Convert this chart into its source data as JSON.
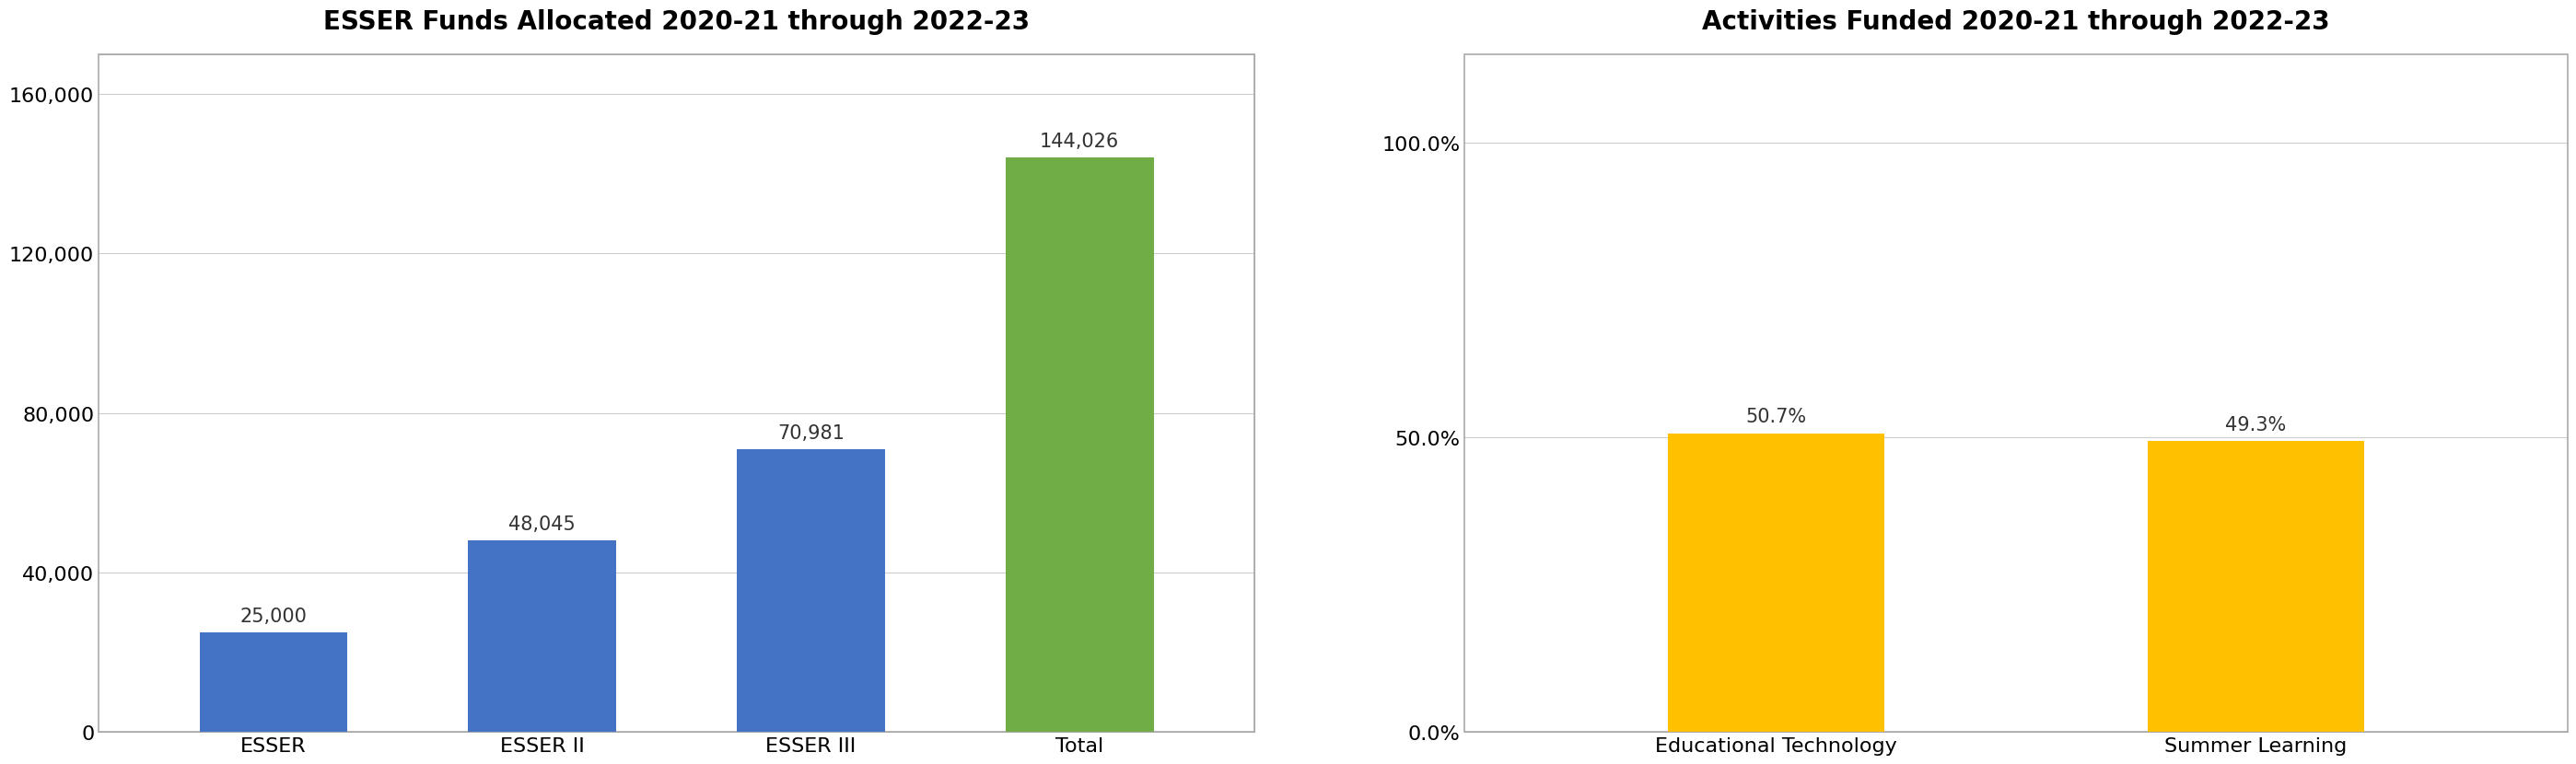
{
  "chart1": {
    "title": "ESSER Funds Allocated 2020-21 through 2022-23",
    "categories": [
      "ESSER",
      "ESSER II",
      "ESSER III",
      "Total"
    ],
    "values": [
      25000,
      48045,
      70981,
      144026
    ],
    "bar_colors": [
      "#4472C4",
      "#4472C4",
      "#4472C4",
      "#70AD47"
    ],
    "labels": [
      "25,000",
      "48,045",
      "70,981",
      "144,026"
    ],
    "ylim": [
      0,
      170000
    ],
    "yticks": [
      0,
      40000,
      80000,
      120000,
      160000
    ],
    "ytick_labels": [
      "0",
      "40,000",
      "80,000",
      "120,000",
      "160,000"
    ],
    "bar_width": 0.55
  },
  "chart2": {
    "title": "Activities Funded 2020-21 through 2022-23",
    "categories": [
      "Educational Technology",
      "Summer Learning"
    ],
    "values": [
      0.507,
      0.493
    ],
    "bar_colors": [
      "#FFC000",
      "#FFC000"
    ],
    "labels": [
      "50.7%",
      "49.3%"
    ],
    "ylim": [
      0,
      1.15
    ],
    "yticks": [
      0.0,
      0.5,
      1.0
    ],
    "ytick_labels": [
      "0.0%",
      "50.0%",
      "100.0%"
    ],
    "bar_width": 0.45
  },
  "background_color": "#FFFFFF",
  "border_color": "#AAAAAA",
  "grid_color": "#CCCCCC",
  "title_fontsize": 20,
  "tick_fontsize": 16,
  "label_fontsize": 15
}
